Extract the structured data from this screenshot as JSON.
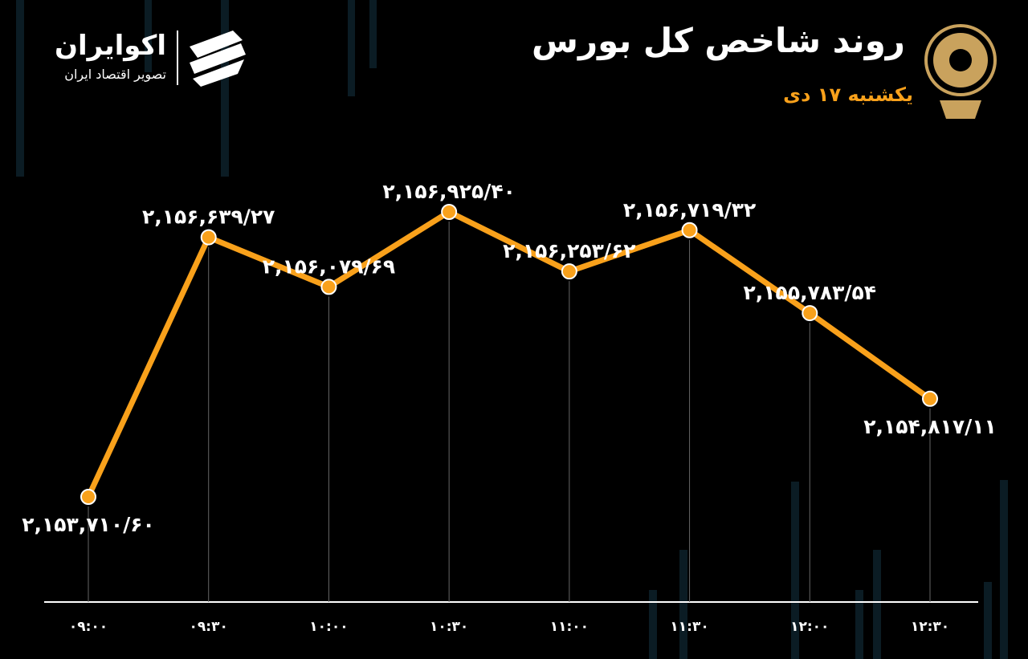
{
  "chart_data": {
    "type": "line",
    "title": "روند شاخص کل بورس",
    "subtitle": "یکشنبه ۱۷ دی",
    "brand": "اکوایران",
    "brand_tagline": "تصویر اقتصاد ایران",
    "categories": [
      "۰۹:۰۰",
      "۰۹:۳۰",
      "۱۰:۰۰",
      "۱۰:۳۰",
      "۱۱:۰۰",
      "۱۱:۳۰",
      "۱۲:۰۰",
      "۱۲:۳۰"
    ],
    "series": [
      {
        "name": "شاخص کل",
        "color": "#f9a11b",
        "values": [
          2153710.6,
          2156639.27,
          2156079.69,
          2156925.4,
          2156253.62,
          2156719.32,
          2155783.54,
          2154817.11
        ],
        "value_labels": [
          "۲,۱۵۳,۷۱۰/۶۰",
          "۲,۱۵۶,۶۳۹/۲۷",
          "۲,۱۵۶,۰۷۹/۶۹",
          "۲,۱۵۶,۹۲۵/۴۰",
          "۲,۱۵۶,۲۵۳/۶۲",
          "۲,۱۵۶,۷۱۹/۳۲",
          "۲,۱۵۵,۷۸۳/۵۴",
          "۲,۱۵۴,۸۱۷/۱۱"
        ]
      }
    ]
  }
}
